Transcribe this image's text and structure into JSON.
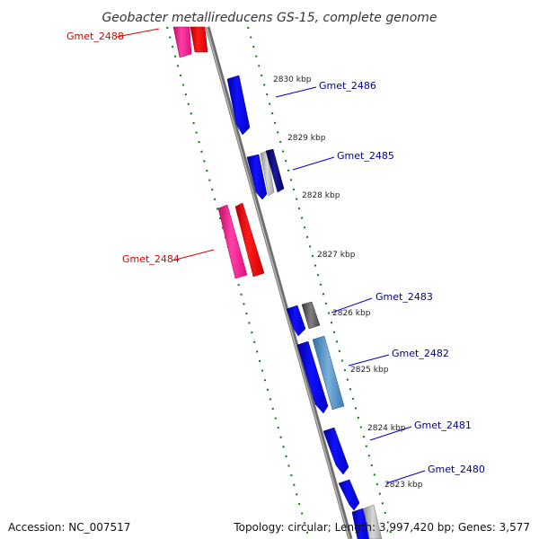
{
  "title": "Geobacter metallireducens GS-15, complete genome",
  "footer": {
    "accession": "Accession: NC_007517",
    "summary": "Topology: circular; Length: 3,997,420 bp; Genes: 3,577"
  },
  "colors": {
    "forward_strand": "#0000ff",
    "reverse_strand": "#ff0000",
    "reverse_strand_pink": "#ff1493",
    "backbone": "#8c8c8c",
    "tick": "#008000",
    "label_forward": "#00008b",
    "label_reverse": "#e00000"
  },
  "scale_labels": [
    {
      "text": "2830 kbp"
    },
    {
      "text": "2829 kbp"
    },
    {
      "text": "2828 kbp"
    },
    {
      "text": "2827 kbp"
    },
    {
      "text": "2826 kbp"
    },
    {
      "text": "2825 kbp"
    },
    {
      "text": "2824 kbp"
    },
    {
      "text": "2823 kbp"
    }
  ],
  "genes": [
    {
      "name": "Gmet_2488",
      "strand": "reverse"
    },
    {
      "name": "Gmet_2486",
      "strand": "forward"
    },
    {
      "name": "Gmet_2485",
      "strand": "forward"
    },
    {
      "name": "Gmet_2484",
      "strand": "reverse"
    },
    {
      "name": "Gmet_2483",
      "strand": "forward"
    },
    {
      "name": "Gmet_2482",
      "strand": "forward"
    },
    {
      "name": "Gmet_2481",
      "strand": "forward"
    },
    {
      "name": "Gmet_2480",
      "strand": "forward"
    }
  ]
}
